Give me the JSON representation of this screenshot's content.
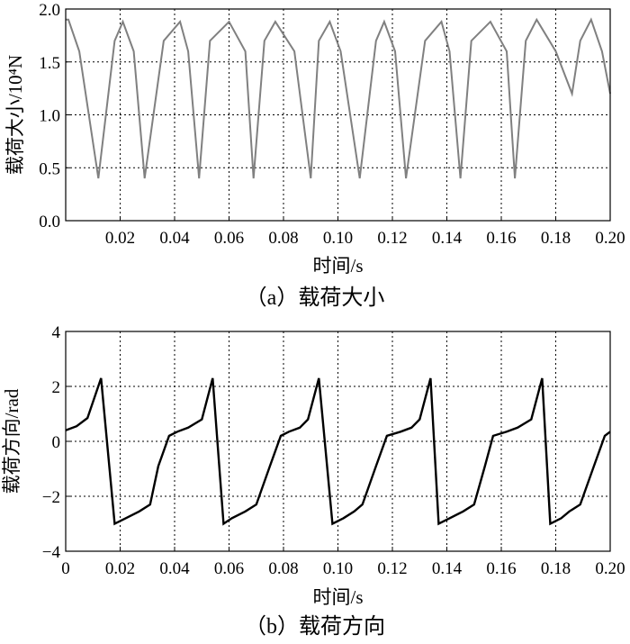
{
  "colors": {
    "panel_a_line": "#808080",
    "panel_b_line": "#000000",
    "grid": "#000000",
    "background": "#ffffff"
  },
  "chart_data": [
    {
      "type": "line",
      "title": "",
      "caption": "（a）载荷大小",
      "xlabel": "时间/s",
      "ylabel": "载荷大小/10⁴N",
      "xlim": [
        0,
        0.2
      ],
      "ylim": [
        0,
        2.0
      ],
      "xticks": [
        0.02,
        0.04,
        0.06,
        0.08,
        0.1,
        0.12,
        0.14,
        0.16,
        0.18,
        0.2
      ],
      "xtick_labels": [
        "0.02",
        "0.04",
        "0.06",
        "0.08",
        "0.10",
        "0.12",
        "0.14",
        "0.16",
        "0.18",
        "0.20"
      ],
      "yticks": [
        0,
        0.5,
        1.0,
        1.5,
        2.0
      ],
      "ytick_labels": [
        "0.0",
        "0.5",
        "1.0",
        "1.5",
        "2.0"
      ],
      "grid": true,
      "series": [
        {
          "x": [
            0,
            0.001,
            0.005,
            0.012,
            0.018,
            0.021,
            0.025,
            0.029,
            0.036,
            0.042,
            0.045,
            0.049,
            0.053,
            0.06,
            0.066,
            0.069,
            0.073,
            0.077,
            0.084,
            0.09,
            0.093,
            0.097,
            0.101,
            0.108,
            0.114,
            0.117,
            0.121,
            0.125,
            0.132,
            0.138,
            0.141,
            0.145,
            0.149,
            0.156,
            0.162,
            0.165,
            0.169,
            0.173,
            0.18,
            0.186,
            0.189,
            0.193,
            0.197,
            0.2
          ],
          "y": [
            1.9,
            1.9,
            1.6,
            0.4,
            1.7,
            1.88,
            1.6,
            0.4,
            1.7,
            1.88,
            1.6,
            0.4,
            1.7,
            1.88,
            1.6,
            0.4,
            1.7,
            1.88,
            1.6,
            0.4,
            1.7,
            1.88,
            1.6,
            0.4,
            1.7,
            1.88,
            1.6,
            0.4,
            1.7,
            1.88,
            1.6,
            0.4,
            1.7,
            1.88,
            1.6,
            0.4,
            1.7,
            1.9,
            1.6,
            1.2,
            1.7,
            1.9,
            1.6,
            1.2
          ]
        }
      ]
    },
    {
      "type": "line",
      "title": "",
      "caption": "（b）载荷方向",
      "xlabel": "时间/s",
      "ylabel": "载荷方向/rad",
      "xlim": [
        0,
        0.2
      ],
      "ylim": [
        -4,
        4
      ],
      "xticks": [
        0,
        0.02,
        0.04,
        0.06,
        0.08,
        0.1,
        0.12,
        0.14,
        0.16,
        0.18,
        0.2
      ],
      "xtick_labels": [
        "0",
        "0.02",
        "0.04",
        "0.06",
        "0.08",
        "0.10",
        "0.12",
        "0.14",
        "0.16",
        "0.18",
        "0.20"
      ],
      "yticks": [
        -4,
        -2,
        0,
        2,
        4
      ],
      "ytick_labels": [
        "−4",
        "−2",
        "0",
        "2",
        "4"
      ],
      "grid": true,
      "series": [
        {
          "x": [
            0,
            0.004,
            0.008,
            0.013,
            0.018,
            0.022,
            0.027,
            0.031,
            0.034,
            0.038,
            0.041,
            0.045,
            0.05,
            0.054,
            0.058,
            0.061,
            0.066,
            0.07,
            0.075,
            0.079,
            0.082,
            0.086,
            0.089,
            0.093,
            0.098,
            0.102,
            0.106,
            0.109,
            0.114,
            0.118,
            0.123,
            0.127,
            0.13,
            0.134,
            0.137,
            0.141,
            0.146,
            0.15,
            0.154,
            0.157,
            0.162,
            0.166,
            0.171,
            0.175,
            0.178,
            0.182,
            0.185,
            0.189,
            0.194,
            0.198,
            0.2
          ],
          "y": [
            0.4,
            0.55,
            0.85,
            2.3,
            -3.0,
            -2.8,
            -2.55,
            -2.3,
            -0.9,
            0.2,
            0.35,
            0.5,
            0.8,
            2.3,
            -3.0,
            -2.8,
            -2.55,
            -2.3,
            -0.9,
            0.2,
            0.35,
            0.5,
            0.8,
            2.3,
            -3.0,
            -2.8,
            -2.55,
            -2.3,
            -0.9,
            0.2,
            0.35,
            0.5,
            0.8,
            2.3,
            -3.0,
            -2.8,
            -2.55,
            -2.3,
            -0.9,
            0.2,
            0.35,
            0.5,
            0.8,
            2.3,
            -3.0,
            -2.8,
            -2.55,
            -2.3,
            -0.9,
            0.2,
            0.35
          ]
        }
      ]
    }
  ]
}
